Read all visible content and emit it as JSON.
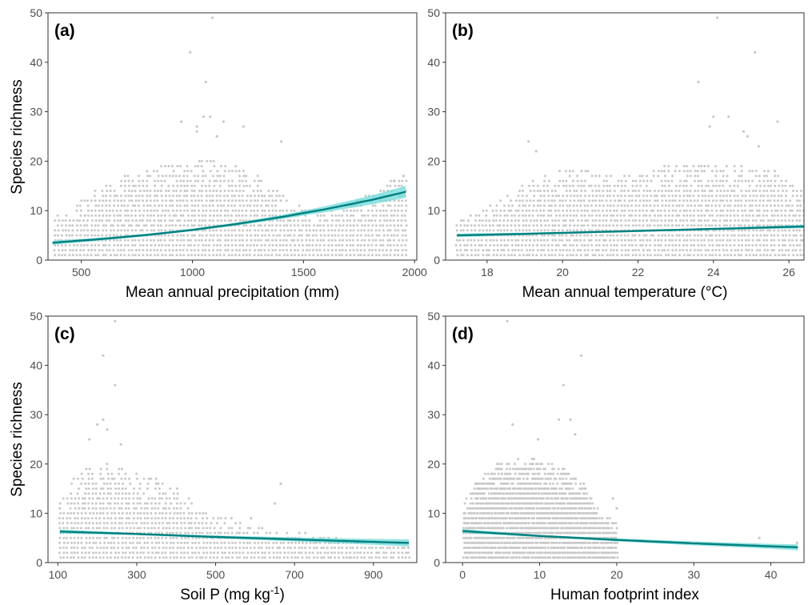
{
  "ylabel": "Species richness",
  "colors": {
    "points": "#c8c8c8",
    "line": "#00807f",
    "ribbon": "#6ed9d9",
    "axis": "#333333"
  },
  "chart_data": [
    {
      "type": "scatter",
      "label": "(a)",
      "xlabel": "Mean annual precipitation (mm)",
      "xlabel_sup": "",
      "xlabel_tail": "",
      "xlim": [
        350,
        2010
      ],
      "ylim": [
        0,
        50
      ],
      "xticks": [
        500,
        1000,
        1500,
        2000
      ],
      "yticks": [
        0,
        10,
        20,
        30,
        40,
        50
      ],
      "fit": {
        "x": [
          370,
          600,
          800,
          1000,
          1200,
          1400,
          1600,
          1800,
          1960
        ],
        "y": [
          3.5,
          4.3,
          5.1,
          6.1,
          7.3,
          8.7,
          10.3,
          12.1,
          13.8
        ]
      },
      "ci_halfwidth": [
        0.4,
        0.3,
        0.25,
        0.25,
        0.3,
        0.4,
        0.6,
        0.9,
        1.2
      ],
      "outliers": [
        [
          1090,
          49
        ],
        [
          990,
          42
        ],
        [
          1060,
          36
        ],
        [
          1050,
          29
        ],
        [
          1080,
          29
        ],
        [
          950,
          28
        ],
        [
          1020,
          27
        ],
        [
          1140,
          28
        ],
        [
          1230,
          27
        ],
        [
          1400,
          24
        ],
        [
          1020,
          26
        ],
        [
          1110,
          25
        ],
        [
          1910,
          16
        ],
        [
          1950,
          17
        ]
      ],
      "cloud": {
        "x0": 380,
        "x1": 1960,
        "ymax_pts": [
          [
            380,
            8
          ],
          [
            500,
            12
          ],
          [
            700,
            17
          ],
          [
            900,
            19
          ],
          [
            1100,
            20
          ],
          [
            1300,
            17
          ],
          [
            1450,
            11
          ],
          [
            1600,
            9
          ],
          [
            1750,
            12
          ],
          [
            1950,
            17
          ]
        ]
      }
    },
    {
      "type": "scatter",
      "label": "(b)",
      "xlabel": "Mean annual temperature (°C)",
      "xlabel_sup": "",
      "xlabel_tail": "",
      "xlim": [
        16.9,
        26.4
      ],
      "ylim": [
        0,
        50
      ],
      "xticks": [
        18,
        20,
        22,
        24,
        26
      ],
      "yticks": [
        0,
        10,
        20,
        30,
        40,
        50
      ],
      "fit": {
        "x": [
          17.2,
          19,
          21,
          23,
          25,
          26.4
        ],
        "y": [
          5.0,
          5.3,
          5.7,
          6.1,
          6.5,
          6.8
        ]
      },
      "ci_halfwidth": [
        0.35,
        0.25,
        0.2,
        0.2,
        0.25,
        0.35
      ],
      "outliers": [
        [
          24.1,
          49
        ],
        [
          25.1,
          42
        ],
        [
          23.6,
          36
        ],
        [
          24.0,
          29
        ],
        [
          24.4,
          29
        ],
        [
          24.8,
          26
        ],
        [
          25.7,
          28
        ],
        [
          23.9,
          27
        ],
        [
          19.3,
          22
        ],
        [
          19.1,
          24
        ],
        [
          25.2,
          23
        ],
        [
          24.9,
          25
        ]
      ],
      "cloud": {
        "x0": 17.2,
        "x1": 26.4,
        "ymax_pts": [
          [
            17.2,
            8
          ],
          [
            18.2,
            11
          ],
          [
            19.0,
            15
          ],
          [
            20.0,
            18
          ],
          [
            21.5,
            17
          ],
          [
            23.0,
            19
          ],
          [
            24.2,
            19
          ],
          [
            25.5,
            18
          ],
          [
            26.4,
            15
          ]
        ]
      }
    },
    {
      "type": "scatter",
      "label": "(c)",
      "xlabel": "Soil P (mg kg",
      "xlabel_sup": "-1",
      "xlabel_tail": ")",
      "xlim": [
        75,
        1010
      ],
      "ylim": [
        0,
        50
      ],
      "xticks": [
        100,
        300,
        500,
        700,
        900
      ],
      "yticks": [
        0,
        10,
        20,
        30,
        40,
        50
      ],
      "fit": {
        "x": [
          105,
          300,
          500,
          700,
          900,
          990
        ],
        "y": [
          6.3,
          5.8,
          5.2,
          4.7,
          4.2,
          4.0
        ]
      },
      "ci_halfwidth": [
        0.4,
        0.2,
        0.3,
        0.4,
        0.6,
        0.7
      ],
      "outliers": [
        [
          245,
          49
        ],
        [
          215,
          42
        ],
        [
          245,
          36
        ],
        [
          215,
          29
        ],
        [
          200,
          28
        ],
        [
          225,
          27
        ],
        [
          180,
          25
        ],
        [
          260,
          24
        ],
        [
          665,
          16
        ],
        [
          650,
          12
        ],
        [
          540,
          9
        ],
        [
          590,
          9
        ],
        [
          560,
          6
        ],
        [
          810,
          4
        ],
        [
          840,
          1
        ]
      ],
      "cloud": {
        "x0": 105,
        "x1": 990,
        "ymax_pts": [
          [
            105,
            12
          ],
          [
            150,
            18
          ],
          [
            200,
            20
          ],
          [
            260,
            19
          ],
          [
            330,
            17
          ],
          [
            400,
            15
          ],
          [
            450,
            12
          ],
          [
            500,
            9
          ],
          [
            600,
            7
          ],
          [
            700,
            6
          ],
          [
            800,
            5
          ],
          [
            900,
            4
          ],
          [
            990,
            4
          ]
        ]
      }
    },
    {
      "type": "scatter",
      "label": "(d)",
      "xlabel": "Human footprint index",
      "xlabel_sup": "",
      "xlabel_tail": "",
      "xlim": [
        -2.2,
        44.3
      ],
      "ylim": [
        0,
        50
      ],
      "xticks": [
        0,
        10,
        20,
        30,
        40
      ],
      "yticks": [
        0,
        10,
        20,
        30,
        40,
        50
      ],
      "fit": {
        "x": [
          0,
          10,
          20,
          30,
          40,
          43.5
        ],
        "y": [
          6.4,
          5.4,
          4.6,
          3.9,
          3.3,
          3.1
        ]
      },
      "ci_halfwidth": [
        0.4,
        0.2,
        0.3,
        0.4,
        0.5,
        0.6
      ],
      "outliers": [
        [
          5.8,
          49
        ],
        [
          15.4,
          42
        ],
        [
          13.1,
          36
        ],
        [
          12.5,
          29
        ],
        [
          14.0,
          29
        ],
        [
          6.5,
          28
        ],
        [
          14.6,
          26
        ],
        [
          9.8,
          25
        ],
        [
          19.5,
          13
        ],
        [
          20.0,
          11
        ],
        [
          38.5,
          5
        ],
        [
          43.4,
          4
        ]
      ],
      "cloud": {
        "x0": 0.2,
        "x1": 20,
        "ymax_pts": [
          [
            0.2,
            12
          ],
          [
            2,
            17
          ],
          [
            5,
            20
          ],
          [
            8,
            21
          ],
          [
            11,
            20
          ],
          [
            14,
            18
          ],
          [
            16,
            15
          ],
          [
            18,
            10
          ],
          [
            20,
            8
          ]
        ]
      }
    }
  ]
}
